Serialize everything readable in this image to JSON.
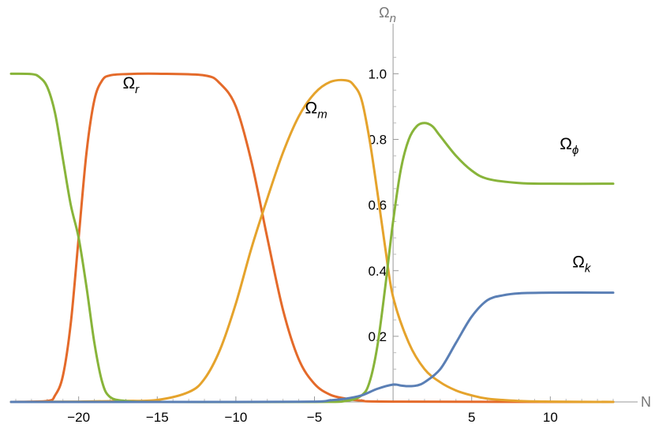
{
  "chart_data": {
    "type": "line",
    "title": "",
    "xlabel": "N",
    "ylabel_base": "Ω",
    "ylabel_sub": "n",
    "xlim": [
      -24.3,
      14.2
    ],
    "ylim": [
      0,
      1.09
    ],
    "xticks": [
      -20,
      -15,
      -10,
      -5,
      5,
      10
    ],
    "xtick_labels": [
      "−20",
      "−15",
      "−10",
      "−5",
      "5",
      "10"
    ],
    "yticks": [
      0.2,
      0.4,
      0.6,
      0.8,
      1.0
    ],
    "ytick_labels": [
      "0.2",
      "0.4",
      "0.6",
      "0.8",
      "1.0"
    ],
    "grid": false,
    "legend": "none",
    "series": [
      {
        "label_base": "Ω",
        "label_sub": "r",
        "color": "#e46a2a",
        "points": [
          [
            -24.3,
            0
          ],
          [
            -22,
            0.003
          ],
          [
            -21.5,
            0.02
          ],
          [
            -21,
            0.08
          ],
          [
            -20.5,
            0.24
          ],
          [
            -20,
            0.5
          ],
          [
            -19.5,
            0.76
          ],
          [
            -19,
            0.92
          ],
          [
            -18.5,
            0.98
          ],
          [
            -18,
            0.995
          ],
          [
            -17,
            0.999
          ],
          [
            -15,
            1.0
          ],
          [
            -12,
            0.995
          ],
          [
            -11,
            0.97
          ],
          [
            -10,
            0.9
          ],
          [
            -9,
            0.73
          ],
          [
            -8,
            0.5
          ],
          [
            -7,
            0.28
          ],
          [
            -6,
            0.13
          ],
          [
            -5,
            0.055
          ],
          [
            -4,
            0.022
          ],
          [
            -3,
            0.01
          ],
          [
            -2,
            0.004
          ],
          [
            0,
            0.001
          ],
          [
            14,
            0
          ]
        ]
      },
      {
        "label_base": "Ω",
        "label_sub": "m",
        "color": "#e5a32c",
        "points": [
          [
            -24.3,
            0
          ],
          [
            -20,
            0.001
          ],
          [
            -17,
            0.003
          ],
          [
            -15,
            0.006
          ],
          [
            -13,
            0.03
          ],
          [
            -12,
            0.07
          ],
          [
            -11,
            0.16
          ],
          [
            -10,
            0.3
          ],
          [
            -9,
            0.47
          ],
          [
            -8,
            0.62
          ],
          [
            -7,
            0.76
          ],
          [
            -6,
            0.87
          ],
          [
            -5,
            0.94
          ],
          [
            -4,
            0.975
          ],
          [
            -3,
            0.98
          ],
          [
            -2.5,
            0.965
          ],
          [
            -2,
            0.92
          ],
          [
            -1.5,
            0.8
          ],
          [
            -1,
            0.64
          ],
          [
            -0.5,
            0.47
          ],
          [
            0,
            0.32
          ],
          [
            1,
            0.18
          ],
          [
            2,
            0.1
          ],
          [
            3,
            0.06
          ],
          [
            4,
            0.035
          ],
          [
            5,
            0.02
          ],
          [
            6,
            0.01
          ],
          [
            8,
            0.003
          ],
          [
            10,
            0.001
          ],
          [
            14,
            0
          ]
        ]
      },
      {
        "label_base": "Ω",
        "label_sub": "ϕ",
        "color": "#88b43a",
        "points": [
          [
            -24.3,
            1.0
          ],
          [
            -23,
            0.999
          ],
          [
            -22.5,
            0.99
          ],
          [
            -22,
            0.96
          ],
          [
            -21.5,
            0.88
          ],
          [
            -21,
            0.74
          ],
          [
            -20.5,
            0.6
          ],
          [
            -20,
            0.5
          ],
          [
            -19.5,
            0.35
          ],
          [
            -19,
            0.18
          ],
          [
            -18.5,
            0.06
          ],
          [
            -18,
            0.015
          ],
          [
            -17,
            0.003
          ],
          [
            -15,
            0
          ],
          [
            -5,
            0
          ],
          [
            -3,
            0.003
          ],
          [
            -2,
            0.02
          ],
          [
            -1.5,
            0.06
          ],
          [
            -1,
            0.17
          ],
          [
            -0.5,
            0.35
          ],
          [
            0,
            0.55
          ],
          [
            0.5,
            0.71
          ],
          [
            1,
            0.8
          ],
          [
            1.5,
            0.84
          ],
          [
            2,
            0.85
          ],
          [
            2.5,
            0.84
          ],
          [
            3,
            0.81
          ],
          [
            4,
            0.75
          ],
          [
            5,
            0.705
          ],
          [
            6,
            0.68
          ],
          [
            8,
            0.667
          ],
          [
            10,
            0.665
          ],
          [
            14,
            0.665
          ]
        ]
      },
      {
        "label_base": "Ω",
        "label_sub": "k",
        "color": "#5a7fb5",
        "points": [
          [
            -24.3,
            0
          ],
          [
            -10,
            0
          ],
          [
            -5,
            0.001
          ],
          [
            -4,
            0.005
          ],
          [
            -3,
            0.01
          ],
          [
            -2,
            0.02
          ],
          [
            -1,
            0.04
          ],
          [
            0,
            0.053
          ],
          [
            0.5,
            0.05
          ],
          [
            1,
            0.048
          ],
          [
            1.5,
            0.05
          ],
          [
            2,
            0.06
          ],
          [
            3,
            0.1
          ],
          [
            4,
            0.18
          ],
          [
            5,
            0.26
          ],
          [
            6,
            0.31
          ],
          [
            7,
            0.325
          ],
          [
            8,
            0.331
          ],
          [
            10,
            0.333
          ],
          [
            14,
            0.333
          ]
        ]
      }
    ]
  }
}
